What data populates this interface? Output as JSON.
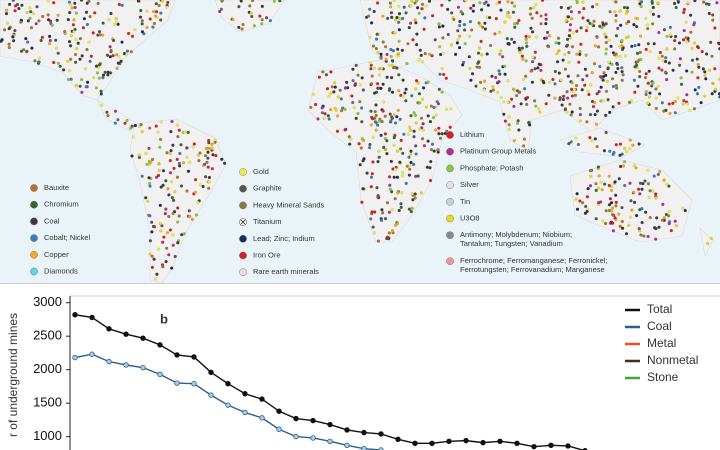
{
  "map": {
    "legend": [
      {
        "name": "Bauxite",
        "color": "#b8742c"
      },
      {
        "name": "Chromium",
        "color": "#2f6a30"
      },
      {
        "name": "Coal",
        "color": "#3a3a3a"
      },
      {
        "name": "Cobalt; Nickel",
        "color": "#3b7bb8"
      },
      {
        "name": "Copper",
        "color": "#f5a623"
      },
      {
        "name": "Diamonds",
        "color": "#5fd4ea"
      },
      {
        "name": "Gold",
        "color": "#eaea4c"
      },
      {
        "name": "Graphite",
        "color": "#555555"
      },
      {
        "name": "Heavy Mineral Sands",
        "color": "#8c7b3a"
      },
      {
        "name": "Titanium",
        "color": "#ffffff",
        "marker": "circle-x"
      },
      {
        "name": "Lead; Zinc; Indium",
        "color": "#1b2b5c"
      },
      {
        "name": "Iron Ore",
        "color": "#d82222"
      },
      {
        "name": "Rare earth minerals",
        "color": "#f4d8e2"
      },
      {
        "name": "Lithium",
        "color": "#d42020"
      },
      {
        "name": "Platinum Group Metals",
        "color": "#b03090"
      },
      {
        "name": "Phosphate; Potash",
        "color": "#8cc63f"
      },
      {
        "name": "Silver",
        "color": "#e2e2e2"
      },
      {
        "name": "Tin",
        "color": "#c8d0d8"
      },
      {
        "name": "U3O8",
        "color": "#e8d820"
      },
      {
        "lines": [
          "Antimony; Molybdenum; Niobium;",
          "Tantalum; Tungsten; Vanadium"
        ],
        "color": "#8a8a8a"
      },
      {
        "lines": [
          "Ferrochrome; Ferromanganese; Ferronickel;",
          "Ferrotungsten; Ferrovanadium; Manganese"
        ],
        "color": "#f29494"
      }
    ]
  },
  "chart_data": {
    "type": "line",
    "annotation": "b",
    "ylabel": "r of underground mines",
    "ylim": [
      800,
      3100
    ],
    "yticks": [
      1000,
      1500,
      2000,
      2500,
      3000
    ],
    "series": [
      {
        "name": "Total",
        "color": "#111111",
        "values": [
          2820,
          2780,
          2610,
          2530,
          2470,
          2370,
          2220,
          2190,
          1960,
          1790,
          1640,
          1560,
          1380,
          1270,
          1240,
          1180,
          1100,
          1060,
          1040,
          960,
          900,
          900,
          930,
          940,
          910,
          930,
          900,
          850,
          870,
          860,
          790
        ]
      },
      {
        "name": "Coal",
        "color": "#2d5f8a",
        "values": [
          2180,
          2230,
          2120,
          2070,
          2030,
          1930,
          1800,
          1790,
          1620,
          1470,
          1360,
          1280,
          1110,
          1000,
          980,
          930,
          870,
          820,
          800,
          null,
          null,
          null,
          null,
          null,
          null,
          null,
          null,
          null,
          null,
          null,
          null
        ]
      },
      {
        "name": "Metal",
        "color": "#e8502a",
        "values": [
          null,
          null,
          null,
          null,
          null,
          null,
          null,
          null,
          null,
          null,
          null,
          null,
          null,
          null,
          null,
          null,
          null,
          null,
          null,
          null,
          null,
          null,
          null,
          null,
          null,
          null,
          null,
          null,
          null,
          null,
          null
        ]
      },
      {
        "name": "Nonmetal",
        "color": "#4a2a1a",
        "values": [
          null,
          null,
          null,
          null,
          null,
          null,
          null,
          null,
          null,
          null,
          null,
          null,
          null,
          null,
          null,
          null,
          null,
          null,
          null,
          null,
          null,
          null,
          null,
          null,
          null,
          null,
          null,
          null,
          null,
          null,
          null
        ]
      },
      {
        "name": "Stone",
        "color": "#4aa040",
        "values": [
          null,
          null,
          null,
          null,
          null,
          null,
          null,
          null,
          null,
          null,
          null,
          null,
          null,
          null,
          null,
          null,
          null,
          null,
          null,
          null,
          null,
          null,
          null,
          null,
          null,
          null,
          null,
          null,
          null,
          null,
          null
        ]
      }
    ]
  }
}
